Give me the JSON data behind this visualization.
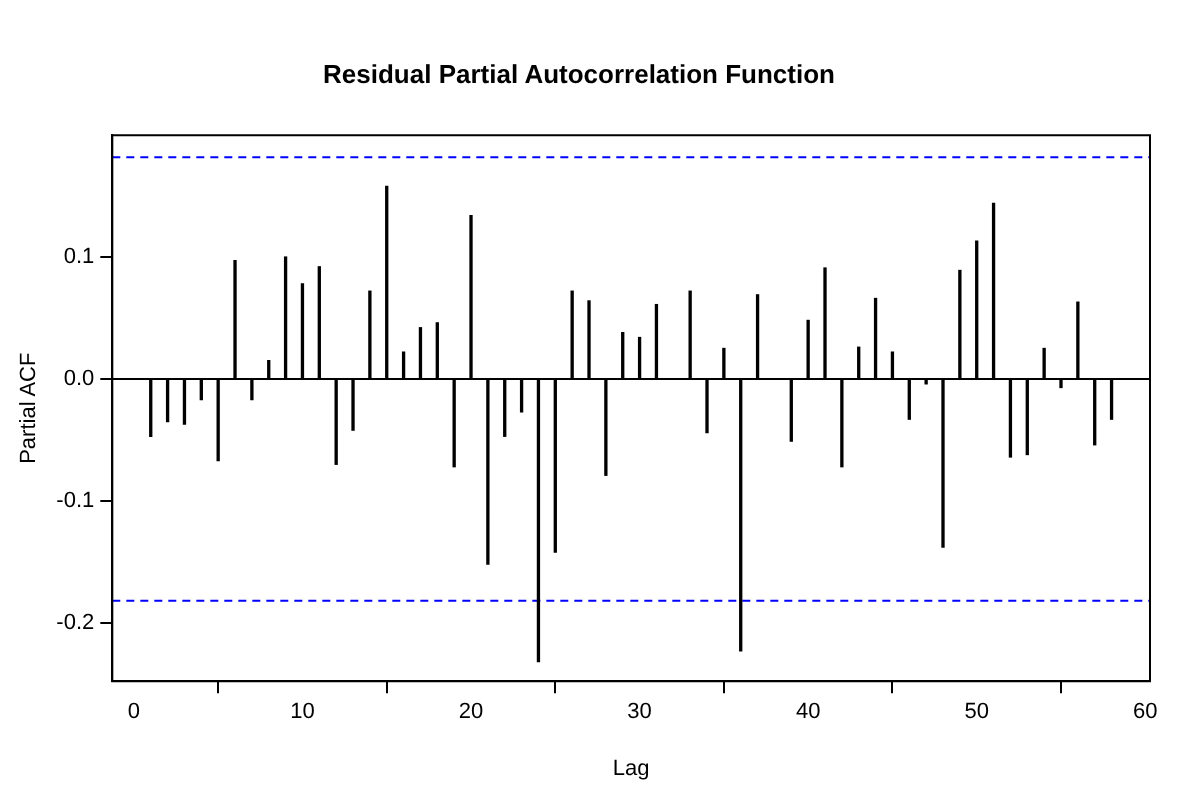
{
  "chart_data": {
    "type": "bar",
    "title": "Residual Partial Autocorrelation Function",
    "xlabel": "Lag",
    "ylabel": "Partial ACF",
    "x": [
      1,
      2,
      3,
      4,
      5,
      6,
      7,
      8,
      9,
      10,
      11,
      12,
      13,
      14,
      15,
      16,
      17,
      18,
      19,
      20,
      21,
      22,
      23,
      24,
      25,
      26,
      27,
      28,
      29,
      30,
      31,
      32,
      33,
      34,
      35,
      36,
      37,
      38,
      39,
      40,
      41,
      42,
      43,
      44,
      45,
      46,
      47,
      48,
      49,
      50,
      51,
      52,
      53,
      54,
      55,
      56,
      57,
      58
    ],
    "values": [
      -0.047,
      -0.035,
      -0.037,
      -0.017,
      -0.067,
      0.097,
      -0.017,
      0.015,
      0.1,
      0.078,
      0.092,
      -0.07,
      -0.042,
      0.072,
      0.158,
      0.022,
      0.042,
      0.046,
      -0.072,
      0.134,
      -0.152,
      -0.047,
      -0.027,
      -0.232,
      -0.142,
      0.072,
      0.064,
      -0.079,
      0.038,
      0.034,
      0.061,
      null,
      0.072,
      -0.044,
      0.025,
      -0.223,
      0.069,
      null,
      -0.051,
      0.048,
      0.091,
      -0.072,
      0.026,
      0.066,
      0.022,
      -0.033,
      -0.004,
      -0.138,
      0.089,
      0.113,
      0.144,
      -0.064,
      -0.062,
      0.025,
      -0.007,
      0.063,
      -0.054,
      -0.033
    ],
    "color": "#000000",
    "xlim": [
      -1.28,
      60.28
    ],
    "xticks": [
      0,
      10,
      20,
      30,
      40,
      50,
      60
    ],
    "ylim": [
      -0.248,
      0.2
    ],
    "yticks": [
      -0.2,
      -0.1,
      {
        "value": 0,
        "label": "0.0"
      },
      0.1
    ],
    "ref_lines": [
      {
        "axis": "y",
        "value": 0.182,
        "color": "#0000ff",
        "line_style": "dashed"
      },
      {
        "axis": "y",
        "value": -0.182,
        "color": "#0000ff",
        "line_style": "dashed"
      },
      {
        "axis": "y",
        "value": 0,
        "color": "#000000",
        "line_style": "solid"
      }
    ],
    "grid": false,
    "legend": false
  }
}
